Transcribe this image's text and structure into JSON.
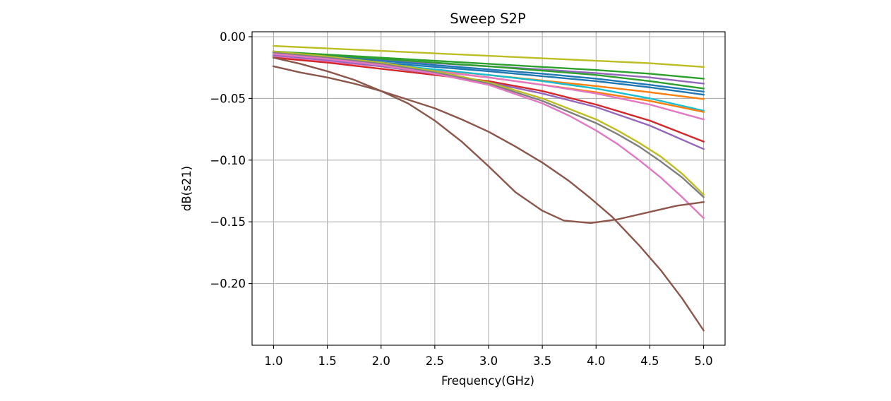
{
  "chart_data": {
    "type": "line",
    "title": "Sweep S2P",
    "xlabel": "Frequency(GHz)",
    "ylabel": "dB(s21)",
    "xlim": [
      0.8,
      5.2
    ],
    "ylim": [
      -0.25,
      0.004
    ],
    "xticks": [
      1.0,
      1.5,
      2.0,
      2.5,
      3.0,
      3.5,
      4.0,
      4.5,
      5.0
    ],
    "xtick_labels": [
      "1.0",
      "1.5",
      "2.0",
      "2.5",
      "3.0",
      "3.5",
      "4.0",
      "4.5",
      "5.0"
    ],
    "yticks": [
      0.0,
      -0.05,
      -0.1,
      -0.15,
      -0.2
    ],
    "ytick_labels": [
      "0.00",
      "−0.05",
      "−0.10",
      "−0.15",
      "−0.20"
    ],
    "grid": true,
    "legend": false,
    "series": [
      {
        "color": "#bcbd22",
        "x": [
          1.0,
          1.5,
          2.0,
          2.5,
          3.0,
          3.5,
          4.0,
          4.5,
          5.0
        ],
        "values": [
          -0.0075,
          -0.0095,
          -0.0115,
          -0.0135,
          -0.0155,
          -0.0175,
          -0.0195,
          -0.0215,
          -0.0245
        ]
      },
      {
        "color": "#2ca02c",
        "x": [
          1.0,
          1.5,
          2.0,
          2.5,
          3.0,
          3.5,
          4.0,
          4.5,
          5.0
        ],
        "values": [
          -0.012,
          -0.0145,
          -0.017,
          -0.0195,
          -0.022,
          -0.0245,
          -0.027,
          -0.03,
          -0.034
        ]
      },
      {
        "color": "#9467bd",
        "x": [
          1.0,
          1.5,
          2.0,
          2.5,
          3.0,
          3.5,
          4.0,
          4.5,
          5.0
        ],
        "values": [
          -0.013,
          -0.016,
          -0.019,
          -0.0215,
          -0.024,
          -0.0265,
          -0.0295,
          -0.033,
          -0.038
        ]
      },
      {
        "color": "#2ca02c",
        "x": [
          1.0,
          1.5,
          2.0,
          2.5,
          3.0,
          3.5,
          4.0,
          4.5,
          5.0
        ],
        "values": [
          -0.012,
          -0.015,
          -0.018,
          -0.021,
          -0.024,
          -0.0275,
          -0.031,
          -0.036,
          -0.042
        ]
      },
      {
        "color": "#1f77b4",
        "x": [
          1.0,
          1.5,
          2.0,
          2.5,
          3.0,
          3.5,
          4.0,
          4.5,
          5.0
        ],
        "values": [
          -0.013,
          -0.016,
          -0.0195,
          -0.023,
          -0.0265,
          -0.03,
          -0.034,
          -0.039,
          -0.0445
        ]
      },
      {
        "color": "#1f77b4",
        "x": [
          1.0,
          1.5,
          2.0,
          2.5,
          3.0,
          3.5,
          4.0,
          4.5,
          5.0
        ],
        "values": [
          -0.014,
          -0.0175,
          -0.021,
          -0.0245,
          -0.028,
          -0.032,
          -0.036,
          -0.041,
          -0.047
        ]
      },
      {
        "color": "#ff7f0e",
        "x": [
          1.0,
          1.5,
          2.0,
          2.5,
          3.0,
          3.5,
          4.0,
          4.5,
          5.0
        ],
        "values": [
          -0.015,
          -0.019,
          -0.023,
          -0.027,
          -0.031,
          -0.0355,
          -0.04,
          -0.045,
          -0.0505
        ]
      },
      {
        "color": "#17becf",
        "x": [
          1.0,
          1.5,
          2.0,
          2.5,
          3.0,
          3.5,
          4.0,
          4.5,
          5.0
        ],
        "values": [
          -0.014,
          -0.018,
          -0.022,
          -0.0265,
          -0.031,
          -0.036,
          -0.042,
          -0.05,
          -0.06
        ]
      },
      {
        "color": "#ff7f0e",
        "x": [
          1.0,
          1.5,
          2.0,
          2.5,
          3.0,
          3.5,
          4.0,
          4.5,
          5.0
        ],
        "values": [
          -0.016,
          -0.02,
          -0.024,
          -0.028,
          -0.033,
          -0.039,
          -0.045,
          -0.052,
          -0.061
        ]
      },
      {
        "color": "#e377c2",
        "x": [
          1.0,
          1.5,
          2.0,
          2.5,
          3.0,
          3.5,
          4.0,
          4.5,
          5.0
        ],
        "values": [
          -0.016,
          -0.02,
          -0.024,
          -0.028,
          -0.033,
          -0.039,
          -0.046,
          -0.055,
          -0.067
        ]
      },
      {
        "color": "#d62728",
        "x": [
          1.0,
          1.5,
          2.0,
          2.5,
          3.0,
          3.5,
          4.0,
          4.5,
          5.0
        ],
        "values": [
          -0.017,
          -0.021,
          -0.026,
          -0.031,
          -0.036,
          -0.044,
          -0.055,
          -0.068,
          -0.085
        ]
      },
      {
        "color": "#9467bd",
        "x": [
          1.0,
          1.5,
          2.0,
          2.5,
          3.0,
          3.5,
          4.0,
          4.5,
          5.0
        ],
        "values": [
          -0.015,
          -0.019,
          -0.024,
          -0.03,
          -0.037,
          -0.046,
          -0.057,
          -0.072,
          -0.091
        ]
      },
      {
        "color": "#bcbd22",
        "x": [
          1.0,
          1.5,
          2.0,
          2.5,
          3.0,
          3.5,
          4.0,
          4.2,
          4.4,
          4.6,
          4.8,
          5.0
        ],
        "values": [
          -0.012,
          -0.016,
          -0.021,
          -0.028,
          -0.037,
          -0.05,
          -0.067,
          -0.076,
          -0.086,
          -0.097,
          -0.111,
          -0.128
        ]
      },
      {
        "color": "#7f7f7f",
        "x": [
          1.0,
          1.5,
          2.0,
          2.5,
          3.0,
          3.5,
          4.0,
          4.2,
          4.4,
          4.6,
          4.8,
          5.0
        ],
        "values": [
          -0.013,
          -0.017,
          -0.022,
          -0.029,
          -0.038,
          -0.052,
          -0.07,
          -0.079,
          -0.089,
          -0.101,
          -0.114,
          -0.13
        ]
      },
      {
        "color": "#e377c2",
        "x": [
          1.0,
          1.5,
          2.0,
          2.5,
          3.0,
          3.5,
          3.75,
          4.0,
          4.2,
          4.4,
          4.6,
          4.8,
          5.0
        ],
        "values": [
          -0.014,
          -0.018,
          -0.023,
          -0.03,
          -0.039,
          -0.054,
          -0.064,
          -0.076,
          -0.087,
          -0.1,
          -0.114,
          -0.13,
          -0.147
        ]
      },
      {
        "color": "#8c564b",
        "x": [
          1.0,
          1.25,
          1.5,
          1.75,
          2.0,
          2.25,
          2.5,
          2.75,
          3.0,
          3.25,
          3.5,
          3.75,
          3.95,
          4.15,
          4.4,
          4.6,
          4.8,
          5.0
        ],
        "values": [
          -0.024,
          -0.029,
          -0.033,
          -0.038,
          -0.044,
          -0.051,
          -0.058,
          -0.067,
          -0.077,
          -0.089,
          -0.102,
          -0.117,
          -0.131,
          -0.146,
          -0.169,
          -0.189,
          -0.212,
          -0.238
        ]
      },
      {
        "color": "#8c564b",
        "x": [
          1.0,
          1.25,
          1.5,
          1.75,
          2.0,
          2.25,
          2.5,
          2.75,
          3.0,
          3.25,
          3.5,
          3.7,
          3.95,
          4.2,
          4.5,
          4.75,
          5.0
        ],
        "values": [
          -0.017,
          -0.022,
          -0.028,
          -0.035,
          -0.044,
          -0.054,
          -0.068,
          -0.085,
          -0.105,
          -0.126,
          -0.141,
          -0.149,
          -0.151,
          -0.148,
          -0.142,
          -0.137,
          -0.134
        ]
      }
    ]
  }
}
